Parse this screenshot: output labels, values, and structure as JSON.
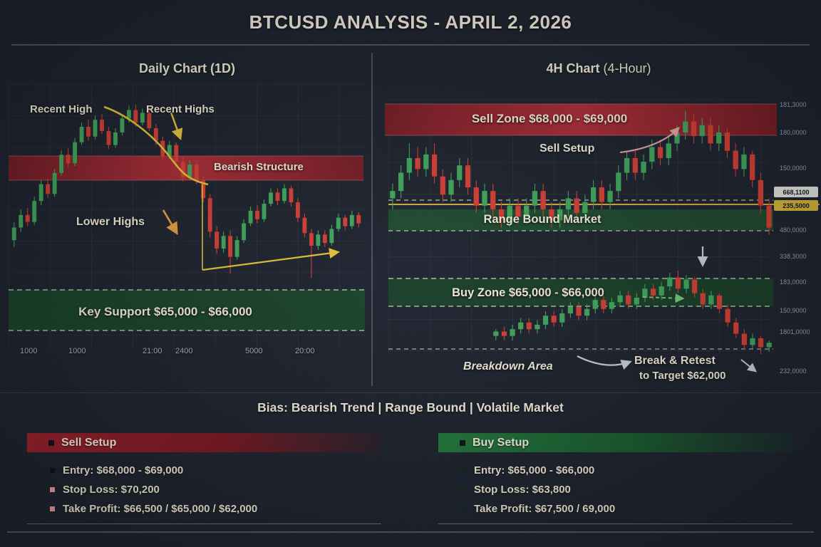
{
  "title": "BTCUSD ANALYSIS - APRIL 2, 2026",
  "colors": {
    "bg": "#1b212d",
    "candle_up": "#3fa85b",
    "candle_down": "#d73e33",
    "accent_yellow": "#e7c437",
    "band_red": "#a3222e",
    "band_green": "#1c4a2d",
    "text_cream": "#f3ecd9"
  },
  "daily": {
    "title": "Daily Chart",
    "title_suffix": "(1D)",
    "ann_recent_high": "Recent High",
    "ann_recent_highs": "Recent Highs",
    "ann_bearish": "Bearish Structure",
    "ann_lower_highs": "Lower Highs",
    "ann_key_support": "Key Support $65,000 - $66,000",
    "x_ticks": [
      "1000",
      "1000",
      "21:00",
      "2400",
      "5000",
      "20:00"
    ]
  },
  "h4": {
    "title": "4H Chart",
    "title_suffix": "(4-Hour)",
    "sell_zone": "Sell Zone $68,000 - $69,000",
    "sell_setup": "Sell Setup",
    "range_bound": "Range Bound Market",
    "buy_zone": "Buy Zone $65,000 - $66,000",
    "breakdown": "Breakdown Area",
    "break_retest_line1": "Break & Retest",
    "break_retest_line2": "to Target $62,000",
    "price_box_white": "668,1100",
    "price_box_yellow": "235,5000",
    "price_labels": [
      "181,3000",
      "180,0000",
      "150,0000",
      "480,0000",
      "338,3000",
      "183,0000",
      "150,9000",
      "1801,0000",
      "232,0000"
    ]
  },
  "bias": {
    "prefix": "Bias:",
    "b1": "Bearish Trend",
    "d1": "|",
    "b2": "Range Bound",
    "d2": "|",
    "b3": "Volatile Market"
  },
  "sell_setup": {
    "title": "Sell Setup",
    "items": [
      "Entry: $68,000 - $69,000",
      "Stop Loss: $70,200",
      "Take Profit: $66,500 / $65,000 / $62,000"
    ]
  },
  "buy_setup": {
    "title": "Buy Setup",
    "items": [
      "Entry: $65,000 - $66,000",
      "Stop Loss: $63,800",
      "Take Profit: $67,500 / 69,000"
    ]
  },
  "chart_data": [
    {
      "type": "candlestick",
      "name": "daily-1d",
      "svg": "daily-candles",
      "unit": "USD thousands",
      "layout": {
        "x0": 15,
        "x1": 508,
        "yTop": 125,
        "yBot": 400,
        "min": 57,
        "max": 71
      },
      "zones": [
        {
          "label": "Bearish Structure",
          "price_range_k": [
            64.5,
            66.2
          ]
        },
        {
          "label": "Key Support",
          "price_range_k": [
            65,
            66
          ]
        }
      ],
      "candles": [
        [
          60.2,
          61.5,
          59.7,
          61.1
        ],
        [
          61.1,
          62.4,
          60.8,
          62.0
        ],
        [
          62.0,
          62.5,
          61.2,
          61.5
        ],
        [
          61.5,
          63.3,
          61.3,
          63.0
        ],
        [
          63.0,
          64.5,
          62.7,
          64.2
        ],
        [
          64.2,
          64.6,
          63.2,
          63.5
        ],
        [
          63.5,
          65.3,
          63.3,
          65.0
        ],
        [
          65.0,
          66.6,
          64.8,
          66.3
        ],
        [
          66.3,
          66.8,
          65.4,
          65.7
        ],
        [
          65.7,
          67.5,
          65.5,
          67.2
        ],
        [
          67.2,
          68.6,
          67.0,
          68.3
        ],
        [
          68.3,
          68.8,
          67.3,
          67.6
        ],
        [
          67.6,
          69.1,
          67.4,
          68.8
        ],
        [
          68.8,
          69.2,
          67.8,
          68.0
        ],
        [
          68.0,
          68.3,
          66.7,
          67.0
        ],
        [
          67.0,
          68.2,
          66.8,
          67.9
        ],
        [
          67.9,
          69.2,
          67.7,
          68.9
        ],
        [
          68.9,
          69.8,
          68.6,
          69.5
        ],
        [
          69.5,
          69.9,
          68.3,
          68.6
        ],
        [
          68.6,
          69.6,
          68.4,
          69.3
        ],
        [
          69.3,
          69.7,
          68.0,
          68.2
        ],
        [
          68.2,
          68.5,
          67.0,
          67.3
        ],
        [
          67.3,
          67.6,
          65.9,
          66.2
        ],
        [
          66.2,
          67.3,
          66.0,
          67.0
        ],
        [
          67.0,
          67.2,
          65.5,
          65.8
        ],
        [
          65.8,
          66.1,
          64.4,
          64.7
        ],
        [
          64.7,
          65.9,
          64.5,
          65.6
        ],
        [
          65.6,
          65.9,
          64.2,
          64.5
        ],
        [
          64.5,
          64.8,
          62.9,
          63.2
        ],
        [
          63.2,
          63.5,
          60.4,
          60.8
        ],
        [
          60.8,
          61.2,
          59.2,
          59.6
        ],
        [
          59.6,
          60.8,
          59.3,
          60.5
        ],
        [
          60.5,
          60.9,
          57.8,
          59.0
        ],
        [
          59.0,
          60.5,
          58.8,
          60.2
        ],
        [
          60.2,
          61.7,
          60.0,
          61.4
        ],
        [
          61.4,
          62.6,
          61.2,
          62.3
        ],
        [
          62.3,
          62.7,
          61.4,
          61.7
        ],
        [
          61.7,
          63.1,
          61.5,
          62.8
        ],
        [
          62.8,
          63.9,
          62.6,
          63.6
        ],
        [
          63.6,
          63.9,
          62.7,
          63.0
        ],
        [
          63.0,
          64.2,
          62.8,
          63.9
        ],
        [
          63.9,
          64.1,
          62.6,
          62.9
        ],
        [
          62.9,
          63.2,
          61.5,
          61.8
        ],
        [
          61.8,
          62.1,
          60.4,
          60.7
        ],
        [
          60.7,
          61.0,
          57.5,
          59.8
        ],
        [
          59.8,
          60.9,
          59.5,
          60.6
        ],
        [
          60.6,
          60.9,
          59.7,
          60.0
        ],
        [
          60.0,
          61.3,
          59.8,
          61.0
        ],
        [
          61.0,
          62.1,
          60.8,
          61.8
        ],
        [
          61.8,
          62.0,
          60.9,
          61.2
        ],
        [
          61.2,
          62.3,
          61.0,
          62.0
        ],
        [
          62.0,
          62.2,
          61.1,
          61.4
        ]
      ]
    },
    {
      "type": "candlestick",
      "name": "4h-range-bound",
      "svg": "h4-upper",
      "unit": "USD thousands",
      "layout": {
        "x0": 545,
        "x1": 1085,
        "yTop": 150,
        "yBot": 335,
        "min": 66,
        "max": 69.6
      },
      "zones": [
        {
          "label": "Sell Zone",
          "price_range_k": [
            68,
            69
          ]
        }
      ],
      "candles": [
        [
          67.1,
          67.5,
          66.8,
          67.3
        ],
        [
          67.3,
          68.0,
          67.1,
          67.8
        ],
        [
          67.8,
          68.6,
          67.6,
          68.2
        ],
        [
          68.2,
          68.5,
          67.7,
          67.9
        ],
        [
          67.9,
          68.5,
          67.7,
          68.3
        ],
        [
          68.3,
          68.6,
          67.5,
          67.7
        ],
        [
          67.7,
          67.9,
          67.0,
          67.2
        ],
        [
          67.2,
          67.8,
          67.0,
          67.6
        ],
        [
          67.6,
          68.2,
          67.4,
          68.0
        ],
        [
          68.0,
          68.2,
          67.2,
          67.4
        ],
        [
          67.4,
          67.6,
          66.7,
          66.9
        ],
        [
          66.9,
          67.5,
          66.7,
          67.3
        ],
        [
          67.3,
          67.5,
          66.6,
          66.8
        ],
        [
          66.8,
          67.0,
          66.3,
          66.5
        ],
        [
          66.5,
          67.1,
          66.3,
          66.9
        ],
        [
          66.9,
          67.1,
          66.4,
          66.6
        ],
        [
          66.6,
          67.1,
          66.4,
          66.9
        ],
        [
          66.9,
          67.5,
          66.7,
          67.3
        ],
        [
          67.3,
          67.5,
          66.6,
          66.8
        ],
        [
          66.8,
          67.0,
          66.3,
          66.5
        ],
        [
          66.5,
          67.0,
          66.3,
          66.8
        ],
        [
          66.8,
          67.3,
          66.6,
          67.1
        ],
        [
          67.1,
          67.3,
          66.5,
          66.7
        ],
        [
          66.7,
          67.2,
          66.5,
          67.0
        ],
        [
          67.0,
          67.6,
          66.8,
          67.4
        ],
        [
          67.4,
          67.6,
          66.8,
          67.0
        ],
        [
          67.0,
          67.5,
          66.8,
          67.3
        ],
        [
          67.3,
          68.0,
          67.1,
          67.8
        ],
        [
          67.8,
          68.4,
          67.6,
          68.2
        ],
        [
          68.2,
          68.4,
          67.6,
          67.8
        ],
        [
          67.8,
          68.3,
          67.6,
          68.1
        ],
        [
          68.1,
          68.7,
          67.9,
          68.5
        ],
        [
          68.5,
          68.7,
          68.0,
          68.2
        ],
        [
          68.2,
          68.8,
          68.0,
          68.6
        ],
        [
          68.6,
          69.1,
          68.4,
          68.9
        ],
        [
          68.9,
          69.5,
          68.7,
          69.2
        ],
        [
          69.2,
          69.4,
          68.6,
          68.8
        ],
        [
          68.8,
          69.3,
          68.6,
          69.1
        ],
        [
          69.1,
          69.3,
          68.4,
          68.6
        ],
        [
          68.6,
          69.1,
          68.4,
          68.9
        ],
        [
          68.9,
          69.0,
          68.2,
          68.4
        ],
        [
          68.4,
          68.6,
          67.7,
          67.9
        ],
        [
          67.9,
          68.5,
          67.7,
          68.3
        ],
        [
          68.3,
          68.4,
          67.4,
          67.6
        ],
        [
          67.6,
          67.8,
          66.7,
          66.9
        ],
        [
          66.9,
          67.1,
          66.1,
          66.3
        ]
      ]
    },
    {
      "type": "candlestick",
      "name": "4h-breakdown-retest",
      "svg": "h4-lower",
      "unit": "USD thousands",
      "layout": {
        "x0": 690,
        "x1": 1085,
        "yTop": 380,
        "yBot": 497,
        "min": 62.6,
        "max": 66.3
      },
      "zones": [
        {
          "label": "Buy Zone",
          "price_range_k": [
            65,
            66
          ]
        },
        {
          "label": "Target",
          "price_k": 62
        }
      ],
      "candles": [
        [
          63.4,
          63.7,
          63.2,
          63.6
        ],
        [
          63.6,
          63.8,
          63.2,
          63.4
        ],
        [
          63.4,
          63.9,
          63.2,
          63.7
        ],
        [
          63.7,
          64.2,
          63.5,
          64.0
        ],
        [
          64.0,
          64.2,
          63.5,
          63.7
        ],
        [
          63.7,
          64.1,
          63.5,
          63.9
        ],
        [
          63.9,
          64.5,
          63.7,
          64.3
        ],
        [
          64.3,
          64.5,
          63.8,
          64.0
        ],
        [
          64.0,
          64.6,
          63.8,
          64.4
        ],
        [
          64.4,
          64.9,
          64.2,
          64.7
        ],
        [
          64.7,
          64.9,
          64.1,
          64.3
        ],
        [
          64.3,
          64.8,
          64.1,
          64.6
        ],
        [
          64.6,
          65.2,
          64.4,
          65.0
        ],
        [
          65.0,
          65.2,
          64.4,
          64.6
        ],
        [
          64.6,
          65.1,
          64.4,
          64.9
        ],
        [
          64.9,
          65.4,
          64.7,
          65.2
        ],
        [
          65.2,
          65.4,
          64.6,
          64.8
        ],
        [
          64.8,
          65.3,
          64.6,
          65.1
        ],
        [
          65.1,
          65.7,
          64.9,
          65.5
        ],
        [
          65.5,
          65.7,
          65.0,
          65.2
        ],
        [
          65.2,
          65.8,
          65.0,
          65.6
        ],
        [
          65.6,
          66.2,
          65.4,
          66.0
        ],
        [
          66.0,
          66.3,
          65.3,
          65.5
        ],
        [
          65.5,
          66.1,
          65.3,
          65.9
        ],
        [
          65.9,
          66.0,
          65.1,
          65.3
        ],
        [
          65.3,
          65.5,
          64.6,
          64.8
        ],
        [
          64.8,
          65.4,
          64.6,
          65.2
        ],
        [
          65.2,
          65.3,
          64.4,
          64.6
        ],
        [
          64.6,
          64.8,
          63.8,
          64.0
        ],
        [
          64.0,
          64.2,
          63.3,
          63.5
        ],
        [
          63.5,
          63.7,
          62.8,
          63.0
        ],
        [
          63.0,
          63.5,
          62.8,
          63.3
        ],
        [
          63.3,
          63.4,
          62.6,
          62.9
        ],
        [
          62.9,
          63.2,
          62.7,
          63.1
        ]
      ]
    }
  ]
}
